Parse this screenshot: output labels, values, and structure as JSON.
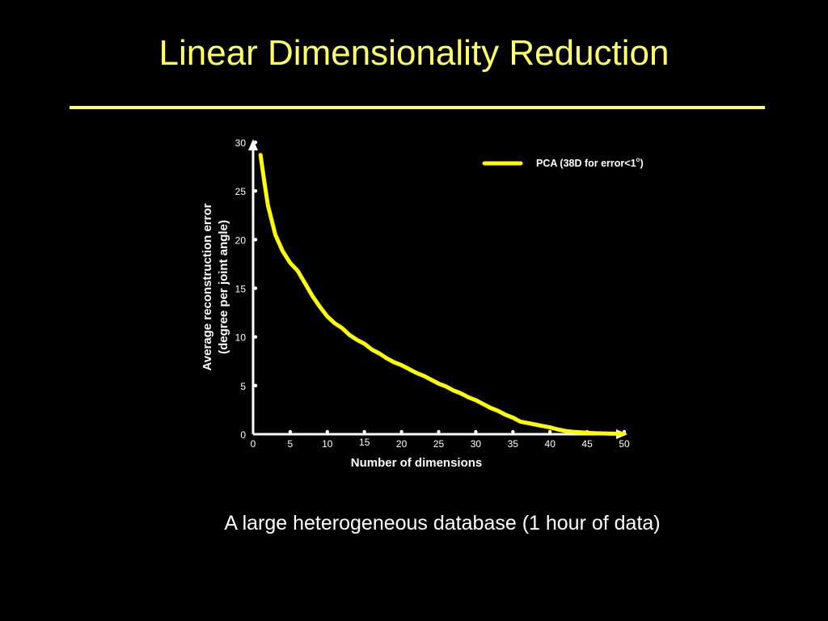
{
  "slide": {
    "title": "Linear Dimensionality Reduction",
    "caption": "A large heterogeneous database (1 hour of data)"
  },
  "colors": {
    "background": "#000000",
    "accent": "#FFFF66",
    "series": "#FFFF00",
    "axis": "#FFFFFF"
  },
  "chart_data": {
    "type": "line",
    "title": "",
    "xlabel": "Number of dimensions",
    "ylabel_line1": "Average reconstruction error",
    "ylabel_line2": "(degree per joint angle)",
    "xlim": [
      0,
      50
    ],
    "ylim": [
      0,
      30
    ],
    "xticks": [
      0,
      5,
      10,
      15,
      20,
      25,
      30,
      35,
      40,
      45,
      50
    ],
    "yticks": [
      0,
      5,
      10,
      15,
      20,
      25,
      30
    ],
    "grid": false,
    "legend_position": "top-right",
    "series": [
      {
        "name": "PCA (38D for error<1",
        "name_degree": "o",
        "name_close": ")",
        "x": [
          1,
          1.5,
          2,
          3,
          4,
          5,
          6,
          7,
          8,
          9,
          10,
          11,
          12,
          13,
          14,
          15,
          16,
          17,
          18,
          19,
          20,
          21,
          22,
          23,
          24,
          25,
          26,
          27,
          28,
          29,
          30,
          31,
          32,
          33,
          34,
          35,
          36,
          37,
          38,
          39,
          40,
          41,
          42,
          43,
          44,
          45,
          46,
          47,
          48,
          49,
          50
        ],
        "values": [
          28.7,
          26.0,
          23.5,
          20.5,
          18.8,
          17.6,
          16.8,
          15.5,
          14.2,
          13.1,
          12.1,
          11.4,
          10.9,
          10.2,
          9.7,
          9.3,
          8.7,
          8.3,
          7.8,
          7.4,
          7.1,
          6.7,
          6.3,
          6.0,
          5.6,
          5.2,
          4.9,
          4.5,
          4.2,
          3.8,
          3.5,
          3.1,
          2.7,
          2.4,
          2.0,
          1.7,
          1.3,
          1.15,
          1.0,
          0.85,
          0.7,
          0.5,
          0.35,
          0.25,
          0.2,
          0.15,
          0.1,
          0.08,
          0.06,
          0.05,
          0.05
        ]
      }
    ]
  }
}
